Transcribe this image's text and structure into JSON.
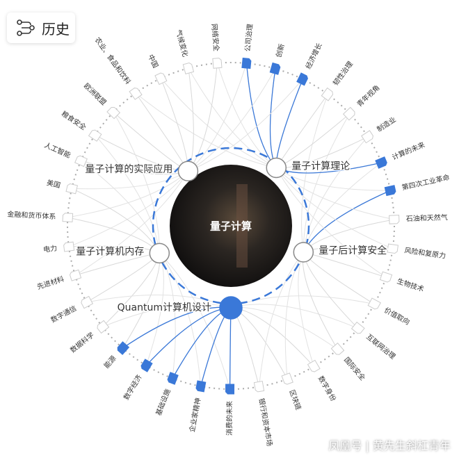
{
  "header": {
    "title": "历史"
  },
  "center": {
    "label": "量子计算"
  },
  "topics": [
    {
      "label": "量子计算的实际应用",
      "highlighted": false
    },
    {
      "label": "量子计算理论",
      "highlighted": false
    },
    {
      "label": "量子后计算安全",
      "highlighted": false
    },
    {
      "label": "Quantum计算机设计",
      "highlighted": true
    },
    {
      "label": "量子计算机内存",
      "highlighted": false
    }
  ],
  "nodes": [
    {
      "label": "公司治理",
      "highlighted": true
    },
    {
      "label": "创新",
      "highlighted": true
    },
    {
      "label": "经济增长",
      "highlighted": true
    },
    {
      "label": "韧性治理",
      "highlighted": false
    },
    {
      "label": "青年视角",
      "highlighted": false
    },
    {
      "label": "制造业",
      "highlighted": false
    },
    {
      "label": "计算的未来",
      "highlighted": true
    },
    {
      "label": "第四次工业革命",
      "highlighted": true
    },
    {
      "label": "石油和天然气",
      "highlighted": false
    },
    {
      "label": "风险和复原力",
      "highlighted": false
    },
    {
      "label": "生物技术",
      "highlighted": false
    },
    {
      "label": "价值取向",
      "highlighted": false
    },
    {
      "label": "互联网治理",
      "highlighted": false
    },
    {
      "label": "国际安全",
      "highlighted": false
    },
    {
      "label": "数字身份",
      "highlighted": false
    },
    {
      "label": "区块链",
      "highlighted": false
    },
    {
      "label": "银行和资本市场",
      "highlighted": false
    },
    {
      "label": "消费的未来",
      "highlighted": true
    },
    {
      "label": "企业家精神",
      "highlighted": true
    },
    {
      "label": "基础设施",
      "highlighted": true
    },
    {
      "label": "数字经济",
      "highlighted": true
    },
    {
      "label": "能源",
      "highlighted": true
    },
    {
      "label": "数据科学",
      "highlighted": false
    },
    {
      "label": "数字通信",
      "highlighted": false
    },
    {
      "label": "先进材料",
      "highlighted": false
    },
    {
      "label": "电力",
      "highlighted": false
    },
    {
      "label": "金融和货币体系",
      "highlighted": false
    },
    {
      "label": "美国",
      "highlighted": false
    },
    {
      "label": "人工智能",
      "highlighted": false
    },
    {
      "label": "粮食安全",
      "highlighted": false
    },
    {
      "label": "欧洲联盟",
      "highlighted": false
    },
    {
      "label": "农业、食品和饮料",
      "highlighted": false
    },
    {
      "label": "中国",
      "highlighted": false
    },
    {
      "label": "气候变化",
      "highlighted": false
    },
    {
      "label": "网络安全",
      "highlighted": false
    }
  ],
  "watermark": "凤凰号 | 黄先生斜杠青年"
}
